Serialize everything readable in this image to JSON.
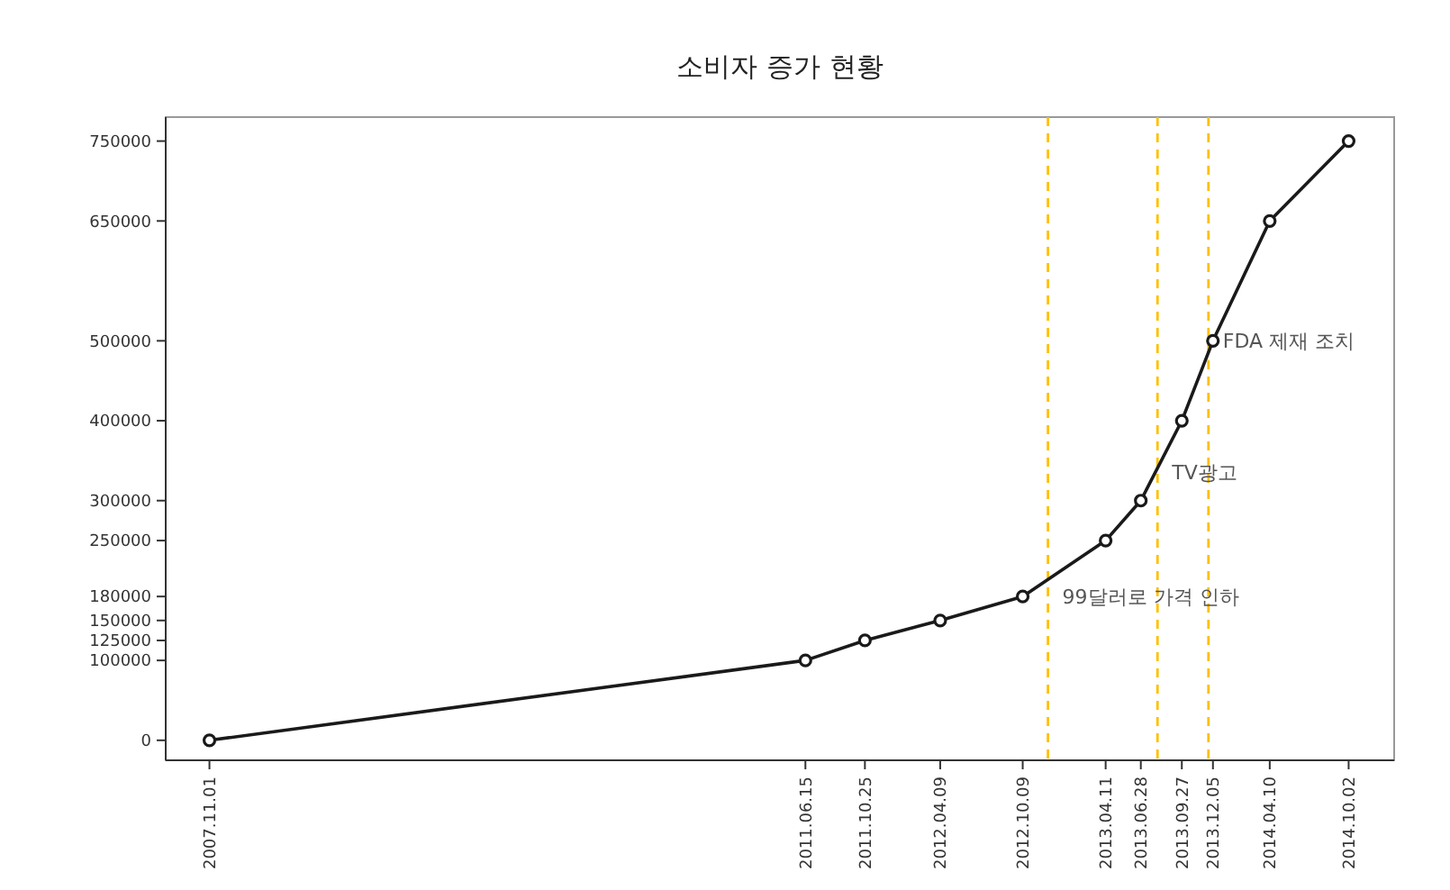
{
  "chart_data": {
    "type": "line",
    "title": "소비자 증가 현황",
    "x": [
      "2007-11-01",
      "2011-06-15",
      "2011-10-25",
      "2012-04-09",
      "2012-10-09",
      "2013-04-11",
      "2013-06-28",
      "2013-09-27",
      "2013-12-05",
      "2014-04-10",
      "2014-10-02"
    ],
    "series": [
      {
        "color": "#1a1a1a",
        "values": [
          0,
          100000,
          125000,
          150000,
          180000,
          250000,
          300000,
          400000,
          500000,
          650000,
          750000
        ]
      }
    ],
    "xlim": [
      "2007-07-27",
      "2015-01-11"
    ],
    "xticks": [
      {
        "value": "2007-11-01",
        "label": "2007.11.01"
      },
      {
        "value": "2011-06-15",
        "label": "2011.06.15"
      },
      {
        "value": "2011-10-25",
        "label": "2011.10.25"
      },
      {
        "value": "2012-04-09",
        "label": "2012.04.09"
      },
      {
        "value": "2012-10-09",
        "label": "2012.10.09"
      },
      {
        "value": "2013-04-11",
        "label": "2013.04.11"
      },
      {
        "value": "2013-06-28",
        "label": "2013.06.28"
      },
      {
        "value": "2013-09-27",
        "label": "2013.09.27"
      },
      {
        "value": "2013-12-05",
        "label": "2013.12.05"
      },
      {
        "value": "2014-04-10",
        "label": "2014.04.10"
      },
      {
        "value": "2014-10-02",
        "label": "2014.10.02"
      }
    ],
    "ylim": [
      -25000,
      780000
    ],
    "yticks": [
      0,
      100000,
      125000,
      150000,
      180000,
      250000,
      300000,
      400000,
      500000,
      650000,
      750000
    ],
    "ref_lines": [
      {
        "axis": "x",
        "value": "2012-12-04",
        "color": "#ffc000",
        "line_style": "dashed"
      },
      {
        "axis": "x",
        "value": "2013-08-04",
        "color": "#ffc000",
        "line_style": "dashed"
      },
      {
        "axis": "x",
        "value": "2013-11-25",
        "color": "#ffc000",
        "line_style": "dashed"
      }
    ],
    "annotations": [
      {
        "text": "99달러로 가격 인하",
        "x": "2012-12-04",
        "y": 180000
      },
      {
        "text": "TV광고",
        "x": "2013-08-04",
        "y": 335000
      },
      {
        "text": "FDA 제재 조치",
        "x": "2013-11-25",
        "y": 500000
      }
    ],
    "marker": "circle",
    "line_style": "solid",
    "grid": false
  }
}
